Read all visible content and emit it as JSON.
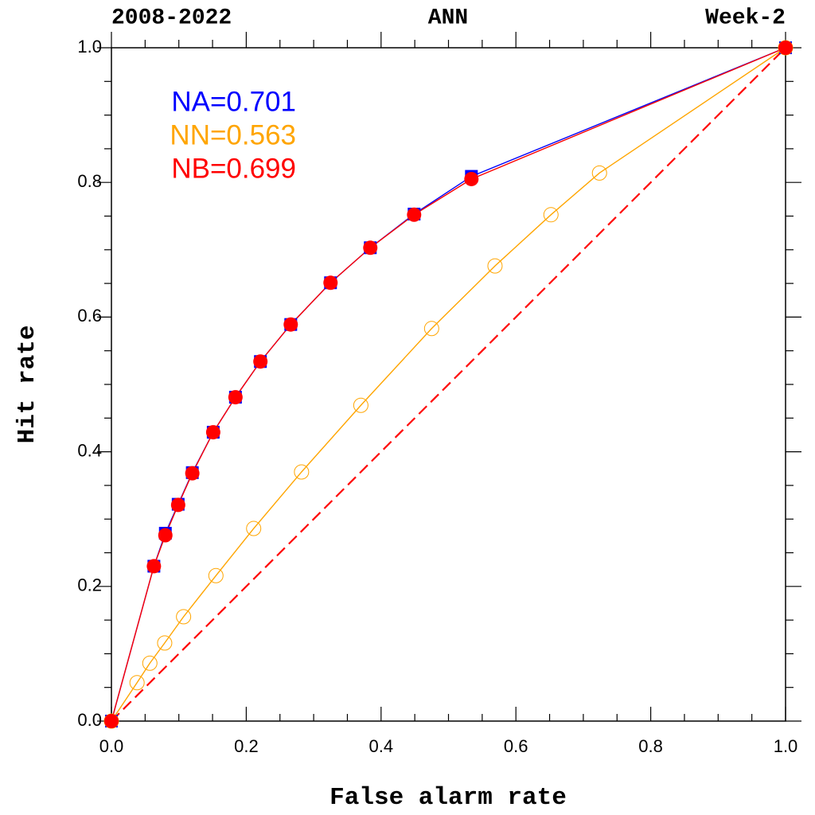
{
  "chart_data": {
    "type": "line",
    "title_left": "2008-2022",
    "title": "ANN",
    "title_right": "Week-2",
    "xlabel": "False alarm rate",
    "ylabel": "Hit rate",
    "xlim": [
      0,
      1
    ],
    "ylim": [
      0,
      1
    ],
    "xticks": [
      {
        "value": 0,
        "label": "0.0"
      },
      {
        "value": 0.2,
        "label": "0.2"
      },
      {
        "value": 0.4,
        "label": "0.4"
      },
      {
        "value": 0.6,
        "label": "0.6"
      },
      {
        "value": 0.8,
        "label": "0.8"
      },
      {
        "value": 1,
        "label": "1.0"
      }
    ],
    "yticks": [
      {
        "value": 0,
        "label": "0.0"
      },
      {
        "value": 0.2,
        "label": "0.2"
      },
      {
        "value": 0.4,
        "label": "0.4"
      },
      {
        "value": 0.6,
        "label": "0.6"
      },
      {
        "value": 0.8,
        "label": "0.8"
      },
      {
        "value": 1,
        "label": "1.0"
      }
    ],
    "xminorticks": [
      0.05,
      0.1,
      0.15,
      0.25,
      0.3,
      0.35,
      0.45,
      0.5,
      0.55,
      0.65,
      0.7,
      0.75,
      0.85,
      0.9,
      0.95
    ],
    "yminorticks": [
      0.05,
      0.1,
      0.15,
      0.25,
      0.3,
      0.35,
      0.45,
      0.5,
      0.55,
      0.65,
      0.7,
      0.75,
      0.85,
      0.9,
      0.95
    ],
    "reference": {
      "color": "#ff0000",
      "x": [
        0,
        1
      ],
      "values": [
        0,
        1
      ]
    },
    "series": [
      {
        "name": "NA=0.701",
        "color": "#0000ff",
        "marker": "square",
        "x": [
          0,
          0.063,
          0.08,
          0.099,
          0.12,
          0.151,
          0.184,
          0.221,
          0.266,
          0.325,
          0.384,
          0.449,
          0.534,
          1
        ],
        "values": [
          0,
          0.23,
          0.279,
          0.322,
          0.369,
          0.429,
          0.481,
          0.534,
          0.589,
          0.651,
          0.703,
          0.753,
          0.809,
          1
        ]
      },
      {
        "name": "NN=0.563",
        "color": "#ffa500",
        "marker": "open-circle",
        "x": [
          0,
          0.038,
          0.057,
          0.079,
          0.107,
          0.155,
          0.211,
          0.282,
          0.37,
          0.475,
          0.569,
          0.652,
          0.724,
          1
        ],
        "values": [
          0,
          0.057,
          0.086,
          0.116,
          0.155,
          0.216,
          0.286,
          0.37,
          0.469,
          0.583,
          0.676,
          0.752,
          0.814,
          1
        ]
      },
      {
        "name": "NB=0.699",
        "color": "#ff0000",
        "marker": "circle",
        "x": [
          0,
          0.063,
          0.08,
          0.099,
          0.12,
          0.151,
          0.184,
          0.221,
          0.266,
          0.325,
          0.384,
          0.449,
          0.534,
          1
        ],
        "values": [
          0,
          0.23,
          0.276,
          0.321,
          0.368,
          0.429,
          0.481,
          0.534,
          0.589,
          0.651,
          0.703,
          0.752,
          0.805,
          1
        ]
      }
    ]
  }
}
